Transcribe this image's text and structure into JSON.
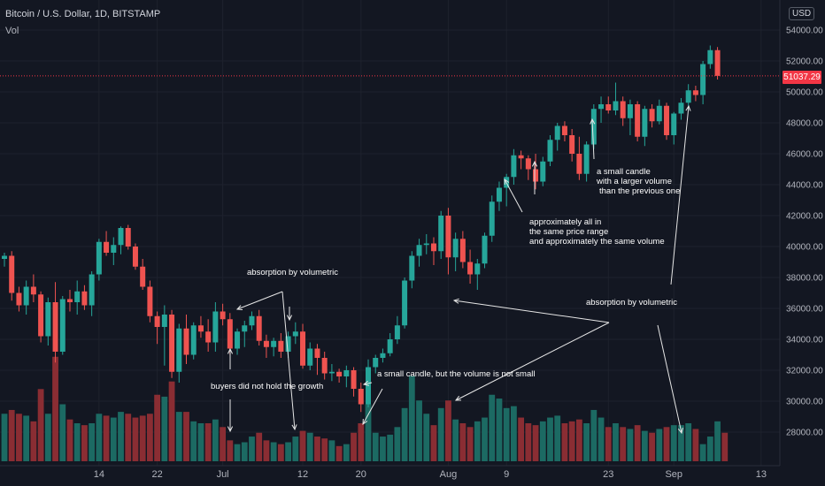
{
  "header": {
    "symbol": "Bitcoin / U.S. Dollar, 1D, BITSTAMP",
    "indicator": "Vol",
    "currency": "USD",
    "last_price": "51037.29"
  },
  "colors": {
    "up": "#26a69a",
    "down": "#ef5350",
    "vol_up": "#1c6a63",
    "vol_down": "#8a2d33",
    "background": "#131722",
    "axis_text": "#b2b5be",
    "annotation": "#ffffff",
    "price_line": "#f23645"
  },
  "chart_data": {
    "type": "candlestick",
    "title": "Bitcoin / U.S. Dollar, 1D, BITSTAMP",
    "y_ticks": [
      28000,
      30000,
      32000,
      34000,
      36000,
      38000,
      40000,
      42000,
      44000,
      46000,
      48000,
      50000,
      52000,
      54000
    ],
    "y_tick_labels": [
      "28000.00",
      "30000.00",
      "32000.00",
      "34000.00",
      "36000.00",
      "38000.00",
      "40000.00",
      "42000.00",
      "44000.00",
      "46000.00",
      "48000.00",
      "50000.00",
      "52000.00",
      "54000.00"
    ],
    "ylim": [
      26500,
      55500
    ],
    "x_ticks": [
      {
        "label": "14",
        "idx": 13
      },
      {
        "label": "22",
        "idx": 21
      },
      {
        "label": "Jul",
        "idx": 30
      },
      {
        "label": "12",
        "idx": 41
      },
      {
        "label": "20",
        "idx": 49
      },
      {
        "label": "Aug",
        "idx": 61
      },
      {
        "label": "9",
        "idx": 69
      },
      {
        "label": "23",
        "idx": 83
      },
      {
        "label": "Sep",
        "idx": 92
      },
      {
        "label": "13",
        "idx": 104
      }
    ],
    "last_price": 51037.29,
    "ohlc": [
      [
        39200,
        39600,
        38700,
        39400
      ],
      [
        39400,
        39700,
        36500,
        37000
      ],
      [
        37000,
        37400,
        35800,
        36200
      ],
      [
        36200,
        37800,
        35600,
        37400
      ],
      [
        37400,
        38200,
        36400,
        36900
      ],
      [
        36900,
        37100,
        33800,
        34200
      ],
      [
        34200,
        36700,
        33600,
        36400
      ],
      [
        36400,
        37700,
        32500,
        33200
      ],
      [
        33200,
        36800,
        33000,
        36600
      ],
      [
        36600,
        37200,
        35800,
        36400
      ],
      [
        36400,
        37800,
        35600,
        37100
      ],
      [
        37100,
        37500,
        35900,
        36200
      ],
      [
        36200,
        38400,
        35500,
        38200
      ],
      [
        38200,
        40500,
        37800,
        40300
      ],
      [
        40300,
        41000,
        39400,
        39600
      ],
      [
        39600,
        40600,
        38800,
        40100
      ],
      [
        40100,
        41300,
        39500,
        41200
      ],
      [
        41200,
        41400,
        39800,
        40000
      ],
      [
        40000,
        40200,
        38500,
        38700
      ],
      [
        38700,
        39200,
        37200,
        37400
      ],
      [
        37400,
        37800,
        35100,
        35500
      ],
      [
        35500,
        35800,
        33700,
        34800
      ],
      [
        34800,
        36200,
        32300,
        35600
      ],
      [
        35600,
        35900,
        31500,
        31900
      ],
      [
        31900,
        35000,
        31200,
        34700
      ],
      [
        34700,
        35600,
        32400,
        33000
      ],
      [
        33000,
        35100,
        32700,
        34900
      ],
      [
        34900,
        35500,
        34100,
        34500
      ],
      [
        34500,
        35300,
        33200,
        33800
      ],
      [
        33800,
        36400,
        33200,
        35800
      ],
      [
        35800,
        36300,
        34900,
        35300
      ],
      [
        35300,
        35700,
        33000,
        33400
      ],
      [
        33400,
        34700,
        33000,
        34500
      ],
      [
        34500,
        35200,
        33500,
        34900
      ],
      [
        34900,
        35800,
        34600,
        35500
      ],
      [
        35500,
        35900,
        33600,
        33900
      ],
      [
        33900,
        34300,
        32800,
        33500
      ],
      [
        33500,
        34100,
        32900,
        33900
      ],
      [
        33900,
        34400,
        32800,
        33200
      ],
      [
        33200,
        34500,
        32800,
        34200
      ],
      [
        34200,
        35100,
        33700,
        34500
      ],
      [
        34500,
        35000,
        32100,
        32300
      ],
      [
        32300,
        33800,
        32000,
        33400
      ],
      [
        33400,
        33700,
        31700,
        32800
      ],
      [
        32800,
        33200,
        31400,
        31800
      ],
      [
        31800,
        32400,
        31300,
        31900
      ],
      [
        31900,
        32100,
        31200,
        31600
      ],
      [
        31600,
        32300,
        30900,
        32000
      ],
      [
        32000,
        32200,
        30300,
        30800
      ],
      [
        30800,
        31200,
        29300,
        29800
      ],
      [
        29800,
        32700,
        29600,
        32200
      ],
      [
        32200,
        33000,
        31800,
        32800
      ],
      [
        32800,
        33400,
        32500,
        33100
      ],
      [
        33100,
        34400,
        32900,
        34000
      ],
      [
        34000,
        35500,
        33700,
        34900
      ],
      [
        34900,
        38000,
        34700,
        37800
      ],
      [
        37800,
        39700,
        37300,
        39400
      ],
      [
        39400,
        40500,
        38700,
        40100
      ],
      [
        40100,
        40800,
        39500,
        40200
      ],
      [
        40200,
        40600,
        38800,
        39700
      ],
      [
        39700,
        42300,
        39200,
        42000
      ],
      [
        42000,
        42500,
        38200,
        39300
      ],
      [
        39300,
        40900,
        38400,
        40500
      ],
      [
        40500,
        41000,
        38600,
        39000
      ],
      [
        39000,
        39800,
        37600,
        38200
      ],
      [
        38200,
        39200,
        37200,
        38900
      ],
      [
        38900,
        40900,
        38600,
        40700
      ],
      [
        40700,
        43300,
        40300,
        42900
      ],
      [
        42900,
        44200,
        42300,
        43800
      ],
      [
        43800,
        44700,
        42600,
        44500
      ],
      [
        44500,
        46300,
        44000,
        45900
      ],
      [
        45900,
        46200,
        45000,
        45700
      ],
      [
        45700,
        45900,
        44300,
        45000
      ],
      [
        45000,
        46000,
        43700,
        44200
      ],
      [
        44200,
        45800,
        43900,
        45500
      ],
      [
        45500,
        47200,
        45200,
        46900
      ],
      [
        46900,
        48000,
        46200,
        47800
      ],
      [
        47800,
        48100,
        46800,
        47200
      ],
      [
        47200,
        47600,
        45500,
        46000
      ],
      [
        46000,
        47100,
        44300,
        44700
      ],
      [
        44700,
        46800,
        44200,
        46600
      ],
      [
        46600,
        49200,
        46300,
        48900
      ],
      [
        48900,
        49700,
        48000,
        49200
      ],
      [
        49200,
        49700,
        48600,
        48800
      ],
      [
        48800,
        50600,
        48500,
        49400
      ],
      [
        49400,
        49700,
        47800,
        48300
      ],
      [
        48300,
        49500,
        47200,
        49200
      ],
      [
        49200,
        49400,
        46800,
        47100
      ],
      [
        47100,
        49100,
        46500,
        48900
      ],
      [
        48900,
        49200,
        47700,
        48100
      ],
      [
        48100,
        49500,
        47900,
        49100
      ],
      [
        49100,
        49300,
        46900,
        47200
      ],
      [
        47200,
        48700,
        46600,
        48600
      ],
      [
        48600,
        49600,
        48200,
        49300
      ],
      [
        49300,
        50500,
        48800,
        50100
      ],
      [
        50100,
        50400,
        49400,
        49800
      ],
      [
        49800,
        52000,
        49200,
        51800
      ],
      [
        51800,
        53000,
        51500,
        52700
      ],
      [
        52700,
        52900,
        50800,
        51037
      ]
    ],
    "volume": [
      [
        2500,
        1
      ],
      [
        2700,
        0
      ],
      [
        2500,
        0
      ],
      [
        2400,
        1
      ],
      [
        2100,
        0
      ],
      [
        3800,
        0
      ],
      [
        2500,
        1
      ],
      [
        5500,
        0
      ],
      [
        3000,
        1
      ],
      [
        2200,
        0
      ],
      [
        2000,
        1
      ],
      [
        1900,
        0
      ],
      [
        2000,
        1
      ],
      [
        2500,
        1
      ],
      [
        2400,
        0
      ],
      [
        2300,
        1
      ],
      [
        2600,
        1
      ],
      [
        2500,
        0
      ],
      [
        2300,
        0
      ],
      [
        2400,
        0
      ],
      [
        2500,
        0
      ],
      [
        3500,
        0
      ],
      [
        3400,
        1
      ],
      [
        4200,
        0
      ],
      [
        2600,
        1
      ],
      [
        2600,
        0
      ],
      [
        2100,
        1
      ],
      [
        2000,
        1
      ],
      [
        2000,
        0
      ],
      [
        2200,
        1
      ],
      [
        1800,
        0
      ],
      [
        1100,
        0
      ],
      [
        900,
        1
      ],
      [
        1000,
        1
      ],
      [
        1300,
        1
      ],
      [
        1500,
        0
      ],
      [
        1100,
        0
      ],
      [
        1000,
        1
      ],
      [
        900,
        0
      ],
      [
        1000,
        1
      ],
      [
        1300,
        1
      ],
      [
        1600,
        0
      ],
      [
        1500,
        1
      ],
      [
        1300,
        0
      ],
      [
        1200,
        0
      ],
      [
        1100,
        1
      ],
      [
        800,
        0
      ],
      [
        900,
        1
      ],
      [
        1500,
        0
      ],
      [
        2000,
        0
      ],
      [
        3000,
        1
      ],
      [
        1500,
        1
      ],
      [
        1300,
        1
      ],
      [
        1400,
        1
      ],
      [
        1800,
        1
      ],
      [
        2800,
        1
      ],
      [
        4500,
        1
      ],
      [
        3200,
        1
      ],
      [
        2500,
        1
      ],
      [
        1900,
        0
      ],
      [
        2800,
        1
      ],
      [
        3200,
        0
      ],
      [
        2200,
        1
      ],
      [
        2000,
        0
      ],
      [
        1800,
        0
      ],
      [
        2100,
        1
      ],
      [
        2300,
        1
      ],
      [
        3500,
        1
      ],
      [
        3300,
        1
      ],
      [
        2800,
        1
      ],
      [
        2900,
        1
      ],
      [
        2300,
        0
      ],
      [
        2000,
        0
      ],
      [
        1900,
        0
      ],
      [
        2100,
        1
      ],
      [
        2300,
        1
      ],
      [
        2400,
        1
      ],
      [
        2000,
        0
      ],
      [
        2100,
        0
      ],
      [
        2200,
        0
      ],
      [
        2000,
        1
      ],
      [
        2700,
        1
      ],
      [
        2300,
        1
      ],
      [
        1800,
        0
      ],
      [
        2000,
        1
      ],
      [
        1800,
        0
      ],
      [
        1700,
        1
      ],
      [
        1900,
        0
      ],
      [
        1600,
        1
      ],
      [
        1500,
        0
      ],
      [
        1700,
        1
      ],
      [
        1800,
        0
      ],
      [
        1900,
        1
      ],
      [
        1900,
        1
      ],
      [
        2000,
        1
      ],
      [
        1700,
        0
      ],
      [
        900,
        1
      ],
      [
        1300,
        1
      ],
      [
        2100,
        1
      ],
      [
        1500,
        0
      ]
    ],
    "annotations": [
      {
        "text": "absorption by volumetric",
        "x": 279,
        "y": 311
      },
      {
        "text": "buyers did not hold the growth",
        "x": 238,
        "y": 440
      },
      {
        "text": "a small candle, but the volume is not small",
        "x": 426,
        "y": 426
      },
      {
        "text": "approximately all in",
        "x": 598,
        "y": 254
      },
      {
        "text": "the same price range",
        "x": 598,
        "y": 265
      },
      {
        "text": "and approximately the same volume",
        "x": 598,
        "y": 276
      },
      {
        "text": "a small candle",
        "x": 674,
        "y": 197
      },
      {
        "text": "with a larger volume",
        "x": 674,
        "y": 208
      },
      {
        "text": "than the previous one",
        "x": 677,
        "y": 219
      },
      {
        "text": "absorption by volumetric",
        "x": 662,
        "y": 345
      }
    ]
  }
}
